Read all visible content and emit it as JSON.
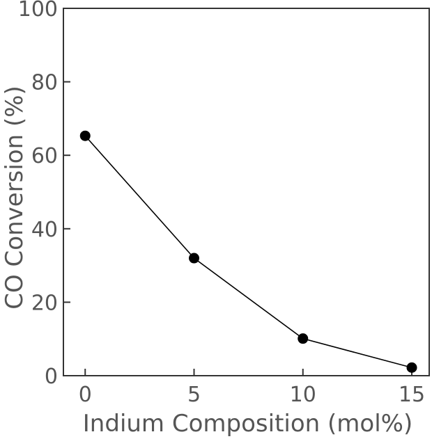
{
  "chart_data": {
    "type": "line",
    "title": "",
    "xlabel": "Indium Composition (mol%)",
    "ylabel": "CO Conversion (%)",
    "x": [
      0,
      5,
      10,
      15
    ],
    "series": [
      {
        "values": [
          65.3,
          32.0,
          10.1,
          2.2
        ]
      }
    ],
    "xlim": [
      -1,
      15.8
    ],
    "ylim": [
      0,
      100
    ],
    "xticks": [
      0,
      5,
      10,
      15
    ],
    "yticks": [
      0,
      20,
      40,
      60,
      80,
      100
    ],
    "grid": false,
    "legend": "none",
    "marker": "circle",
    "line_color": "#000000",
    "marker_color": "#000000",
    "text_color": "#555555"
  }
}
